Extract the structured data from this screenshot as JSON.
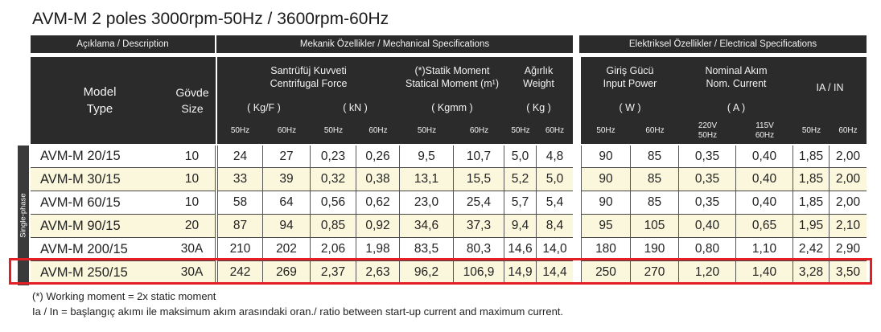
{
  "title": "AVM-M 2 poles 3000rpm-50Hz  / 3600rpm-60Hz",
  "side_label": "Single-phase",
  "headers": {
    "description": "Açıklama / Description",
    "mechanical": "Mekanik Özellikler / Mechanical Specifications",
    "electrical": "Elektriksel Özellikler / Electrical Specifications",
    "model_l1": "Model",
    "model_l2": "Type",
    "body_l1": "Gövde",
    "body_l2": "Size",
    "cf_l1": "Santrüfüj  Kuvveti",
    "cf_l2": "Centrifugal Force",
    "cf_unit1": "( Kg/F )",
    "cf_unit2": "( kN )",
    "sm_l1": "(*)Statik Moment",
    "sm_l2": "Statical Moment (m¹)",
    "sm_unit": "( Kgmm )",
    "w_l1": "Ağırlık",
    "w_l2": "Weight",
    "w_unit": "( Kg )",
    "ip_l1": "Giriş Gücü",
    "ip_l2": "Input Power",
    "ip_unit": "( W )",
    "nc_l1": "Nominal Akım",
    "nc_l2": "Nom. Current",
    "nc_unit": "( A )",
    "iain": "IA / IN"
  },
  "freq": {
    "f50": "50Hz",
    "f60": "60Hz",
    "v220_1": "220V",
    "v220_2": "50Hz",
    "v115_1": "115V",
    "v115_2": "60Hz"
  },
  "rows": [
    [
      "AVM-M 20/15",
      "10",
      "24",
      "27",
      "0,23",
      "0,26",
      "9,5",
      "10,7",
      "5,0",
      "4,8",
      "90",
      "85",
      "0,35",
      "0,40",
      "1,85",
      "2,00"
    ],
    [
      "AVM-M 30/15",
      "10",
      "33",
      "39",
      "0,32",
      "0,38",
      "13,1",
      "15,5",
      "5,2",
      "5,0",
      "90",
      "85",
      "0,35",
      "0,40",
      "1,85",
      "2,00"
    ],
    [
      "AVM-M 60/15",
      "10",
      "58",
      "64",
      "0,56",
      "0,62",
      "23,0",
      "25,4",
      "5,7",
      "5,4",
      "90",
      "85",
      "0,35",
      "0,40",
      "1,85",
      "2,00"
    ],
    [
      "AVM-M 90/15",
      "20",
      "87",
      "94",
      "0,85",
      "0,92",
      "34,6",
      "37,3",
      "9,4",
      "8,4",
      "95",
      "105",
      "0,40",
      "0,65",
      "1,95",
      "2,10"
    ],
    [
      "AVM-M 200/15",
      "30A",
      "210",
      "202",
      "2,06",
      "1,98",
      "83,5",
      "80,3",
      "14,6",
      "14,0",
      "180",
      "190",
      "0,80",
      "1,10",
      "2,42",
      "2,90"
    ],
    [
      "AVM-M 250/15",
      "30A",
      "242",
      "269",
      "2,37",
      "2,63",
      "96,2",
      "106,9",
      "14,9",
      "14,4",
      "250",
      "270",
      "1,20",
      "1,40",
      "3,28",
      "3,50"
    ]
  ],
  "notes": {
    "n1": "(*) Working moment = 2x static moment",
    "n2": "Ia / In = başlangıç akımı ile maksimum akım arasındaki oran./ ratio between start-up current and maximum current."
  },
  "colors": {
    "header_bg": "#2b2b2b",
    "row_odd": "#ffffff",
    "row_even": "#fbf7dc",
    "highlight": "#e31e24"
  }
}
